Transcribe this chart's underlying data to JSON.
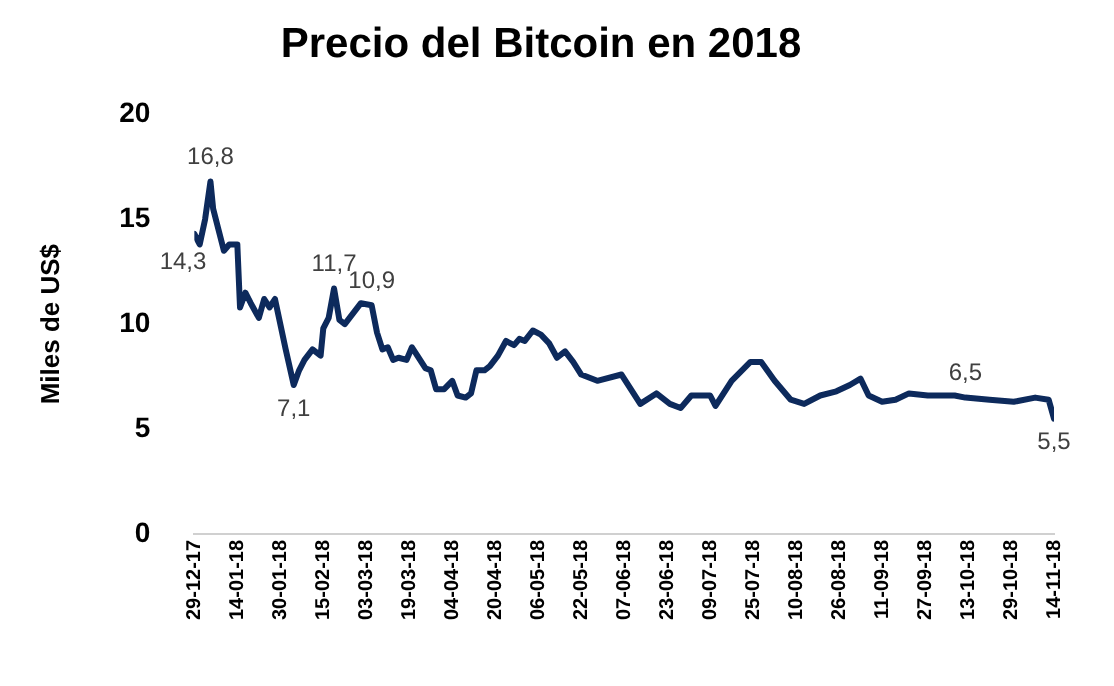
{
  "chart_data": {
    "type": "line",
    "title": "Precio del Bitcoin en 2018",
    "ylabel": "Miles de US$",
    "x": [
      "2017-12-29",
      "2017-12-31",
      "2018-01-02",
      "2018-01-04",
      "2018-01-05",
      "2018-01-07",
      "2018-01-09",
      "2018-01-11",
      "2018-01-14",
      "2018-01-15",
      "2018-01-17",
      "2018-01-19",
      "2018-01-22",
      "2018-01-24",
      "2018-01-26",
      "2018-01-28",
      "2018-01-30",
      "2018-02-01",
      "2018-02-04",
      "2018-02-06",
      "2018-02-08",
      "2018-02-11",
      "2018-02-14",
      "2018-02-15",
      "2018-02-17",
      "2018-02-19",
      "2018-02-21",
      "2018-02-23",
      "2018-02-26",
      "2018-03-01",
      "2018-03-05",
      "2018-03-07",
      "2018-03-09",
      "2018-03-11",
      "2018-03-13",
      "2018-03-15",
      "2018-03-18",
      "2018-03-20",
      "2018-03-22",
      "2018-03-25",
      "2018-03-27",
      "2018-03-29",
      "2018-04-01",
      "2018-04-04",
      "2018-04-06",
      "2018-04-09",
      "2018-04-11",
      "2018-04-13",
      "2018-04-16",
      "2018-04-18",
      "2018-04-21",
      "2018-04-24",
      "2018-04-27",
      "2018-04-29",
      "2018-05-01",
      "2018-05-04",
      "2018-05-07",
      "2018-05-10",
      "2018-05-13",
      "2018-05-16",
      "2018-05-19",
      "2018-05-22",
      "2018-05-28",
      "2018-06-06",
      "2018-06-13",
      "2018-06-19",
      "2018-06-24",
      "2018-06-28",
      "2018-07-02",
      "2018-07-09",
      "2018-07-11",
      "2018-07-17",
      "2018-07-24",
      "2018-07-28",
      "2018-08-02",
      "2018-08-08",
      "2018-08-13",
      "2018-08-19",
      "2018-08-25",
      "2018-08-30",
      "2018-09-03",
      "2018-09-06",
      "2018-09-11",
      "2018-09-16",
      "2018-09-21",
      "2018-09-28",
      "2018-10-08",
      "2018-10-12",
      "2018-10-21",
      "2018-10-30",
      "2018-11-07",
      "2018-11-12",
      "2018-11-14"
    ],
    "series": [
      {
        "color": "#0d2a5c",
        "values": [
          14.3,
          13.8,
          15.0,
          16.8,
          15.5,
          14.5,
          13.5,
          13.8,
          13.8,
          10.8,
          11.5,
          11.0,
          10.3,
          11.2,
          10.8,
          11.2,
          10.0,
          8.8,
          7.1,
          7.8,
          8.3,
          8.8,
          8.5,
          9.8,
          10.3,
          11.7,
          10.2,
          10.0,
          10.5,
          11.0,
          10.9,
          9.6,
          8.8,
          8.9,
          8.3,
          8.4,
          8.3,
          8.9,
          8.5,
          7.9,
          7.8,
          6.9,
          6.9,
          7.3,
          6.6,
          6.5,
          6.7,
          7.8,
          7.8,
          8.0,
          8.5,
          9.2,
          9.0,
          9.3,
          9.2,
          9.7,
          9.5,
          9.1,
          8.4,
          8.7,
          8.2,
          7.6,
          7.3,
          7.6,
          6.2,
          6.7,
          6.2,
          6.0,
          6.6,
          6.6,
          6.1,
          7.3,
          8.2,
          8.2,
          7.3,
          6.4,
          6.2,
          6.6,
          6.8,
          7.1,
          7.4,
          6.6,
          6.3,
          6.4,
          6.7,
          6.6,
          6.6,
          6.5,
          6.4,
          6.3,
          6.5,
          6.4,
          5.5
        ],
        "value_labels": [
          "14,3",
          null,
          null,
          "16,8",
          null,
          null,
          null,
          null,
          null,
          null,
          null,
          null,
          null,
          null,
          null,
          null,
          null,
          null,
          "7,1",
          null,
          null,
          null,
          null,
          null,
          null,
          "11,7",
          null,
          null,
          null,
          null,
          "10,9",
          null,
          null,
          null,
          null,
          null,
          null,
          null,
          null,
          null,
          null,
          null,
          null,
          null,
          null,
          null,
          null,
          null,
          null,
          null,
          null,
          null,
          null,
          null,
          null,
          null,
          null,
          null,
          null,
          null,
          null,
          null,
          null,
          null,
          null,
          null,
          null,
          null,
          null,
          null,
          null,
          null,
          null,
          null,
          null,
          null,
          null,
          null,
          null,
          null,
          null,
          null,
          null,
          null,
          null,
          null,
          null,
          "6,5",
          null,
          null,
          null,
          null,
          "5,5"
        ]
      }
    ],
    "xlim": [
      "2017-12-29",
      "2018-11-14"
    ],
    "xticks": [
      {
        "value": "2017-12-29",
        "label": "29-12-17"
      },
      {
        "value": "2018-01-14",
        "label": "14-01-18"
      },
      {
        "value": "2018-01-30",
        "label": "30-01-18"
      },
      {
        "value": "2018-02-15",
        "label": "15-02-18"
      },
      {
        "value": "2018-03-03",
        "label": "03-03-18"
      },
      {
        "value": "2018-03-19",
        "label": "19-03-18"
      },
      {
        "value": "2018-04-04",
        "label": "04-04-18"
      },
      {
        "value": "2018-04-20",
        "label": "20-04-18"
      },
      {
        "value": "2018-05-06",
        "label": "06-05-18"
      },
      {
        "value": "2018-05-22",
        "label": "22-05-18"
      },
      {
        "value": "2018-06-07",
        "label": "07-06-18"
      },
      {
        "value": "2018-06-23",
        "label": "23-06-18"
      },
      {
        "value": "2018-07-09",
        "label": "09-07-18"
      },
      {
        "value": "2018-07-25",
        "label": "25-07-18"
      },
      {
        "value": "2018-08-10",
        "label": "10-08-18"
      },
      {
        "value": "2018-08-26",
        "label": "26-08-18"
      },
      {
        "value": "2018-09-11",
        "label": "11-09-18"
      },
      {
        "value": "2018-09-27",
        "label": "27-09-18"
      },
      {
        "value": "2018-10-13",
        "label": "13-10-18"
      },
      {
        "value": "2018-10-29",
        "label": "29-10-18"
      },
      {
        "value": "2018-11-14",
        "label": "14-11-18"
      }
    ],
    "ylim": [
      0,
      20
    ],
    "yticks": [
      0,
      5,
      10,
      15,
      20
    ],
    "grid": false,
    "legend": false,
    "marker": "none",
    "line_style": "solid"
  }
}
